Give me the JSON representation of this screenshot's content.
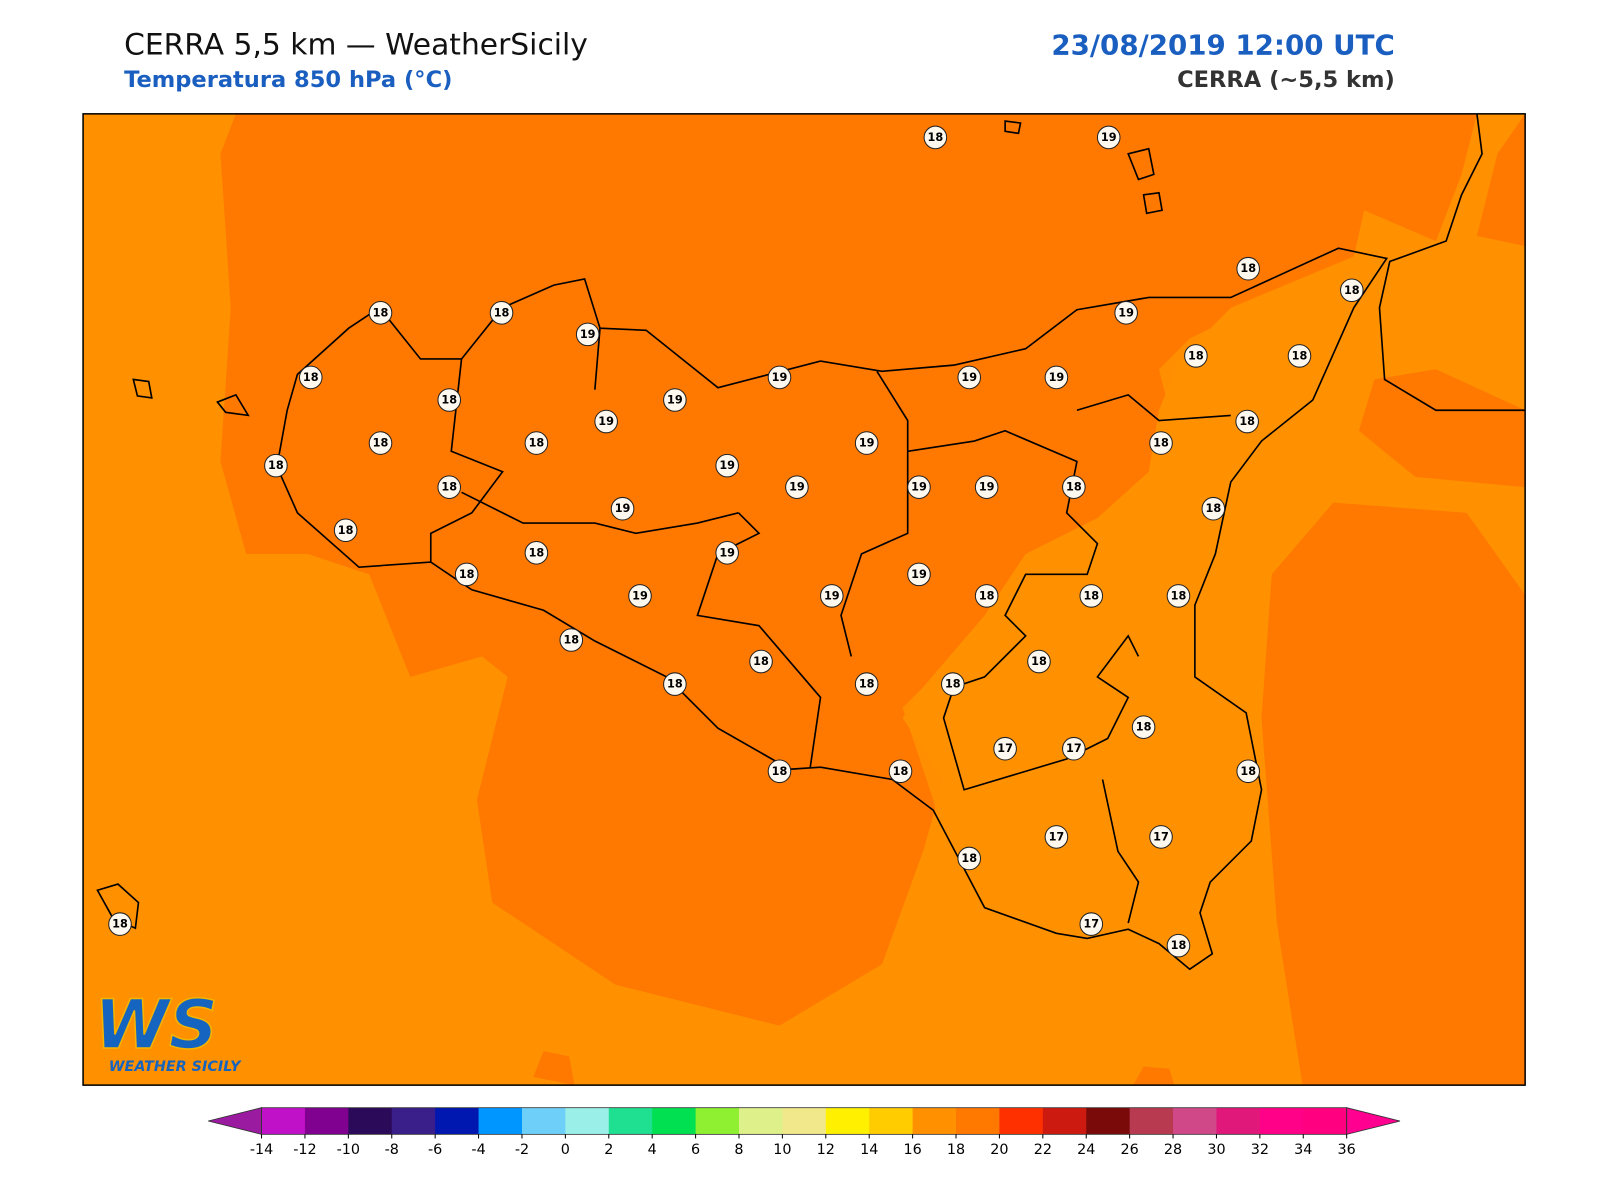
{
  "header": {
    "title": "CERRA 5,5 km — WeatherSicily",
    "subtitle": "Temperatura 850 hPa (°C)",
    "datetime": "23/08/2019 12:00 UTC",
    "model": "CERRA (~5,5 km)"
  },
  "stations": [
    18,
    19,
    18,
    18,
    18,
    18,
    19,
    19,
    18,
    19,
    19,
    19,
    18,
    18,
    18,
    19,
    19,
    18,
    18,
    18,
    19,
    18,
    18,
    19,
    18,
    19,
    19,
    19,
    18,
    19,
    18,
    18,
    18,
    19,
    18,
    19,
    19,
    19,
    18,
    18,
    18,
    18,
    18,
    18,
    18,
    18,
    18,
    18,
    17,
    17,
    18,
    18,
    18,
    18,
    17,
    17,
    17,
    18,
    18
  ],
  "colorbar": {
    "ticks": [
      -14,
      -12,
      -10,
      -8,
      -6,
      -4,
      -2,
      0,
      2,
      4,
      6,
      8,
      10,
      12,
      14,
      16,
      18,
      20,
      22,
      24,
      26,
      28,
      30,
      32,
      34,
      36
    ],
    "colors": [
      "#c010c8",
      "#800090",
      "#2c0a5a",
      "#3a1e8a",
      "#0018b0",
      "#0096ff",
      "#6ed0f8",
      "#9af0e8",
      "#1ee090",
      "#00e050",
      "#8ef030",
      "#def08a",
      "#f0e88a",
      "#fff000",
      "#ffcc00",
      "#ff9000",
      "#ff7800",
      "#ff3000",
      "#cc1a10",
      "#7a0a0a",
      "#b83a50",
      "#d04888",
      "#e0187a",
      "#ff0088",
      "#ff0080"
    ],
    "under": "#9a1aa0",
    "over": "#ff0090"
  },
  "logo": {
    "mark": "WS",
    "text": "WEATHER SICILY"
  }
}
